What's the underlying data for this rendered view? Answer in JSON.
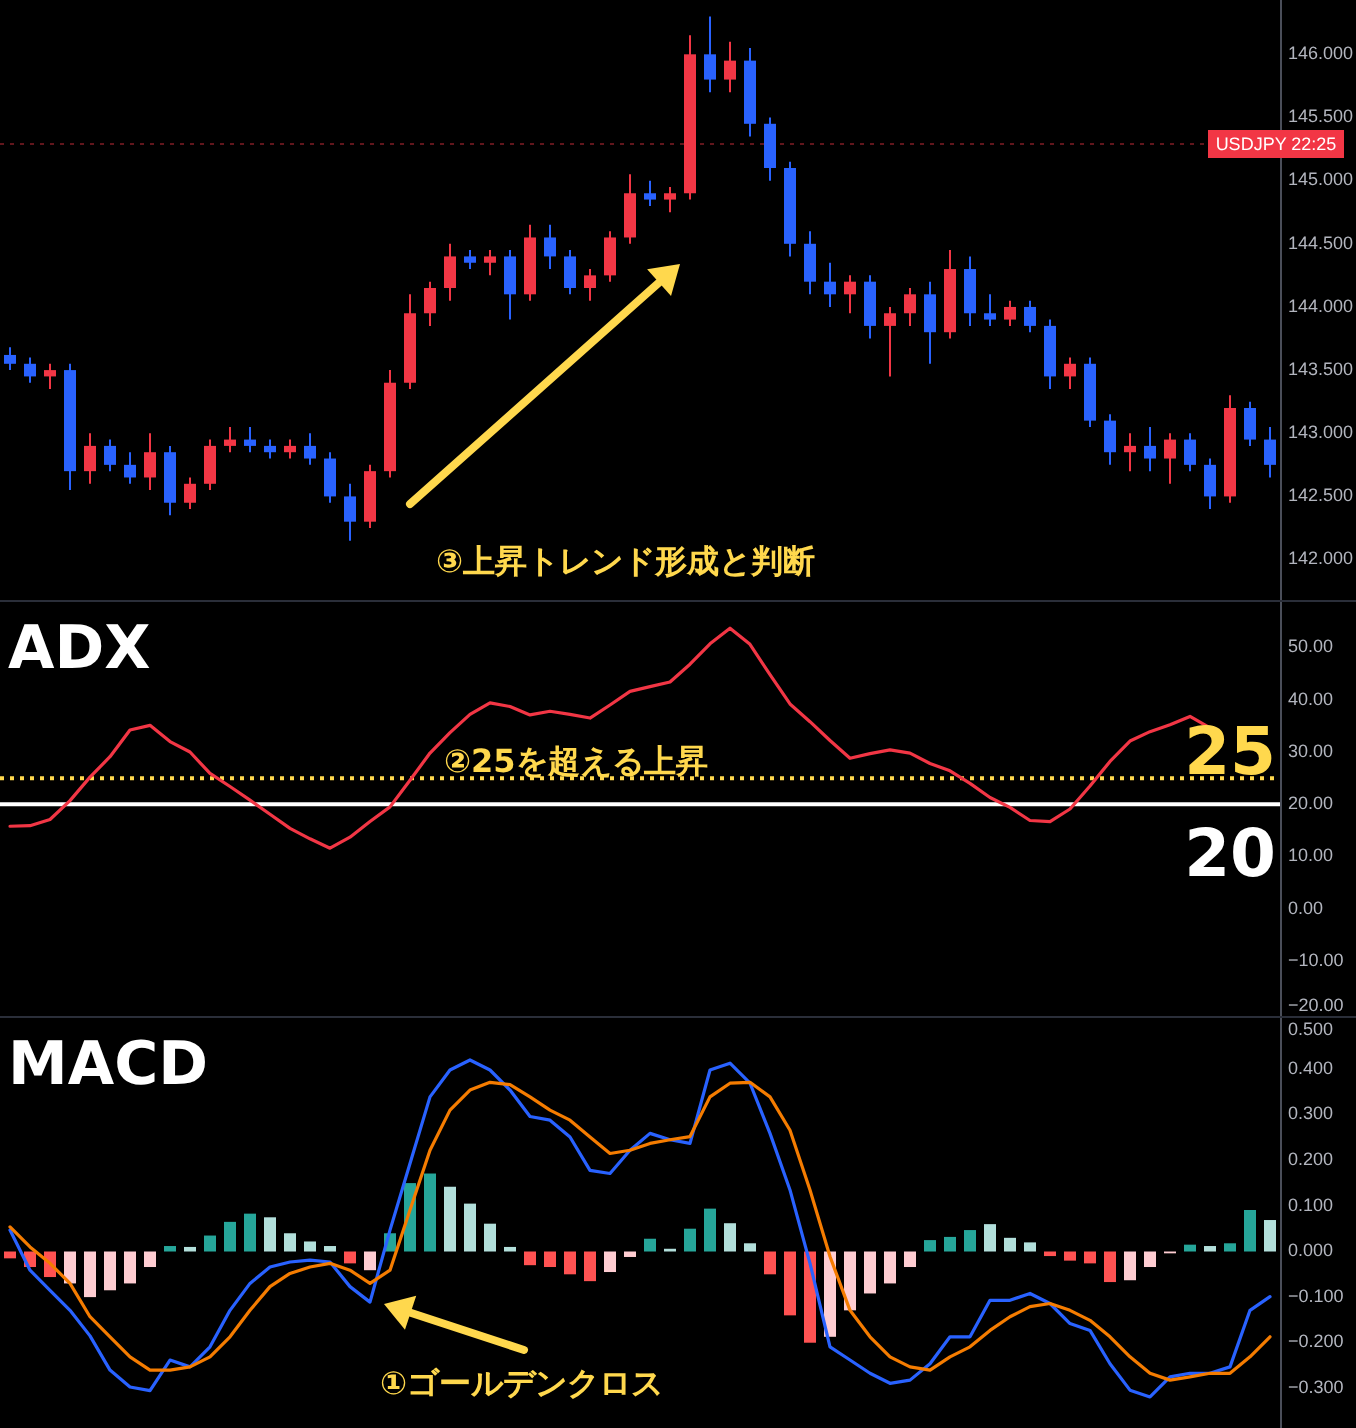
{
  "chart_data": [
    {
      "type": "candlestick",
      "categories": [
        null,
        null,
        null,
        null,
        null,
        null,
        null,
        null,
        null,
        null,
        null,
        null,
        null,
        null,
        null,
        null,
        null,
        null,
        null,
        null,
        null,
        null,
        null,
        null,
        null,
        null,
        null,
        null,
        null,
        null,
        null,
        null,
        null,
        null,
        null,
        null,
        null,
        null,
        null,
        null,
        null,
        null,
        null,
        null,
        null,
        null,
        null,
        null,
        null,
        null,
        null,
        null,
        null,
        null,
        null,
        null,
        null,
        null,
        null,
        null,
        null,
        null,
        null,
        null
      ],
      "ohlc": [
        [
          143.62,
          143.68,
          143.5,
          143.55
        ],
        [
          143.55,
          143.6,
          143.4,
          143.45
        ],
        [
          143.45,
          143.55,
          143.35,
          143.5
        ],
        [
          143.5,
          143.55,
          142.55,
          142.7
        ],
        [
          142.7,
          143.0,
          142.6,
          142.9
        ],
        [
          142.9,
          142.95,
          142.7,
          142.75
        ],
        [
          142.75,
          142.85,
          142.6,
          142.65
        ],
        [
          142.65,
          143.0,
          142.55,
          142.85
        ],
        [
          142.85,
          142.9,
          142.35,
          142.45
        ],
        [
          142.45,
          142.65,
          142.4,
          142.6
        ],
        [
          142.6,
          142.95,
          142.55,
          142.9
        ],
        [
          142.9,
          143.05,
          142.85,
          142.95
        ],
        [
          142.95,
          143.05,
          142.85,
          142.9
        ],
        [
          142.9,
          142.95,
          142.8,
          142.85
        ],
        [
          142.85,
          142.95,
          142.8,
          142.9
        ],
        [
          142.9,
          143.0,
          142.75,
          142.8
        ],
        [
          142.8,
          142.85,
          142.45,
          142.5
        ],
        [
          142.5,
          142.6,
          142.15,
          142.3
        ],
        [
          142.3,
          142.75,
          142.25,
          142.7
        ],
        [
          142.7,
          143.5,
          142.65,
          143.4
        ],
        [
          143.4,
          144.1,
          143.35,
          143.95
        ],
        [
          143.95,
          144.2,
          143.85,
          144.15
        ],
        [
          144.15,
          144.5,
          144.05,
          144.4
        ],
        [
          144.4,
          144.45,
          144.3,
          144.35
        ],
        [
          144.35,
          144.45,
          144.25,
          144.4
        ],
        [
          144.4,
          144.45,
          143.9,
          144.1
        ],
        [
          144.1,
          144.65,
          144.05,
          144.55
        ],
        [
          144.55,
          144.65,
          144.3,
          144.4
        ],
        [
          144.4,
          144.45,
          144.1,
          144.15
        ],
        [
          144.15,
          144.3,
          144.05,
          144.25
        ],
        [
          144.25,
          144.6,
          144.2,
          144.55
        ],
        [
          144.55,
          145.05,
          144.5,
          144.9
        ],
        [
          144.9,
          145.0,
          144.8,
          144.85
        ],
        [
          144.85,
          144.95,
          144.75,
          144.9
        ],
        [
          144.9,
          146.15,
          144.85,
          146.0
        ],
        [
          146.0,
          146.3,
          145.7,
          145.8
        ],
        [
          145.8,
          146.1,
          145.7,
          145.95
        ],
        [
          145.95,
          146.05,
          145.35,
          145.45
        ],
        [
          145.45,
          145.5,
          145.0,
          145.1
        ],
        [
          145.1,
          145.15,
          144.4,
          144.5
        ],
        [
          144.5,
          144.6,
          144.1,
          144.2
        ],
        [
          144.2,
          144.35,
          144.0,
          144.1
        ],
        [
          144.1,
          144.25,
          143.95,
          144.2
        ],
        [
          144.2,
          144.25,
          143.75,
          143.85
        ],
        [
          143.85,
          144.0,
          143.45,
          143.95
        ],
        [
          143.95,
          144.15,
          143.85,
          144.1
        ],
        [
          144.1,
          144.2,
          143.55,
          143.8
        ],
        [
          143.8,
          144.45,
          143.75,
          144.3
        ],
        [
          144.3,
          144.4,
          143.85,
          143.95
        ],
        [
          143.95,
          144.1,
          143.85,
          143.9
        ],
        [
          143.9,
          144.05,
          143.85,
          144.0
        ],
        [
          144.0,
          144.05,
          143.8,
          143.85
        ],
        [
          143.85,
          143.9,
          143.35,
          143.45
        ],
        [
          143.45,
          143.6,
          143.35,
          143.55
        ],
        [
          143.55,
          143.6,
          143.05,
          143.1
        ],
        [
          143.1,
          143.15,
          142.75,
          142.85
        ],
        [
          142.85,
          143.0,
          142.7,
          142.9
        ],
        [
          142.9,
          143.05,
          142.7,
          142.8
        ],
        [
          142.8,
          143.0,
          142.6,
          142.95
        ],
        [
          142.95,
          143.0,
          142.7,
          142.75
        ],
        [
          142.75,
          142.8,
          142.4,
          142.5
        ],
        [
          142.5,
          143.3,
          142.45,
          143.2
        ],
        [
          143.2,
          143.25,
          142.9,
          142.95
        ],
        [
          142.95,
          143.05,
          142.65,
          142.75
        ]
      ],
      "colors": [
        "#2962ff",
        "#2962ff",
        "#f23645",
        "#2962ff",
        "#f23645",
        "#2962ff",
        "#2962ff",
        "#f23645",
        "#2962ff",
        "#f23645",
        "#f23645",
        "#f23645",
        "#2962ff",
        "#2962ff",
        "#f23645",
        "#2962ff",
        "#2962ff",
        "#2962ff",
        "#f23645",
        "#f23645",
        "#f23645",
        "#f23645",
        "#f23645",
        "#2962ff",
        "#f23645",
        "#2962ff",
        "#f23645",
        "#2962ff",
        "#2962ff",
        "#f23645",
        "#f23645",
        "#f23645",
        "#2962ff",
        "#f23645",
        "#f23645",
        "#2962ff",
        "#f23645",
        "#2962ff",
        "#2962ff",
        "#2962ff",
        "#2962ff",
        "#2962ff",
        "#f23645",
        "#2962ff",
        "#f23645",
        "#f23645",
        "#2962ff",
        "#f23645",
        "#2962ff",
        "#2962ff",
        "#f23645",
        "#2962ff",
        "#2962ff",
        "#f23645",
        "#2962ff",
        "#2962ff",
        "#f23645",
        "#2962ff",
        "#f23645",
        "#2962ff",
        "#2962ff",
        "#f23645",
        "#2962ff",
        "#2962ff"
      ],
      "ylim": [
        141.68,
        146.43
      ],
      "yticks": [
        {
          "value": 142,
          "label": "142.000"
        },
        {
          "value": 142.5,
          "label": "142.500"
        },
        {
          "value": 143,
          "label": "143.000"
        },
        {
          "value": 143.5,
          "label": "143.500"
        },
        {
          "value": 144,
          "label": "144.000"
        },
        {
          "value": 144.5,
          "label": "144.500"
        },
        {
          "value": 145,
          "label": "145.000"
        },
        {
          "value": 145.5,
          "label": "145.500"
        },
        {
          "value": 146,
          "label": "146.000"
        }
      ],
      "tick_labels": "y",
      "ref_lines": [
        {
          "axis": "y",
          "value": 145.29,
          "color": "#f23645",
          "line_style": "dotted"
        }
      ],
      "annotations": [
        "③上昇トレンド形成と判断",
        "USDJPY 22:25"
      ]
    },
    {
      "type": "line",
      "title": "ADX",
      "categories": [
        null,
        null,
        null,
        null,
        null,
        null,
        null,
        null,
        null,
        null,
        null,
        null,
        null,
        null,
        null,
        null,
        null,
        null,
        null,
        null,
        null,
        null,
        null,
        null,
        null,
        null,
        null,
        null,
        null,
        null,
        null,
        null,
        null,
        null,
        null,
        null,
        null,
        null,
        null,
        null,
        null,
        null,
        null,
        null,
        null,
        null,
        null,
        null,
        null,
        null,
        null,
        null,
        null,
        null,
        null,
        null,
        null,
        null,
        null,
        null,
        null,
        null,
        null,
        null
      ],
      "series": [
        {
          "color": "#f23645",
          "values": [
            15.8,
            15.9,
            17.1,
            20.7,
            25.2,
            29.1,
            34.2,
            35.1,
            32.0,
            30.0,
            25.9,
            23.4,
            20.8,
            18.1,
            15.4,
            13.4,
            11.6,
            13.7,
            16.7,
            19.5,
            24.6,
            29.8,
            33.7,
            37.2,
            39.4,
            38.7,
            37.1,
            37.8,
            37.2,
            36.5,
            39.0,
            41.6,
            42.5,
            43.4,
            46.8,
            50.7,
            53.7,
            50.6,
            44.8,
            39.2,
            35.8,
            32.2,
            28.8,
            29.7,
            30.4,
            29.8,
            27.8,
            26.4,
            24.0,
            21.3,
            19.4,
            16.9,
            16.7,
            19.1,
            23.5,
            28.2,
            32.1,
            33.9,
            35.2,
            36.8,
            34.6,
            null,
            null,
            null
          ]
        }
      ],
      "ylim": [
        -20.5,
        58.7
      ],
      "yticks": [
        {
          "value": -20,
          "label": "−20.00"
        },
        {
          "value": -10,
          "label": "−10.00"
        },
        {
          "value": 0,
          "label": "0.00"
        },
        {
          "value": 10,
          "label": "10.00"
        },
        {
          "value": 20,
          "label": "20.00"
        },
        {
          "value": 30,
          "label": "30.00"
        },
        {
          "value": 40,
          "label": "40.00"
        },
        {
          "value": 50,
          "label": "50.00"
        }
      ],
      "tick_labels": "y",
      "ref_lines": [
        {
          "axis": "y",
          "value": 25,
          "label": "25",
          "color": "#ffd84d",
          "line_style": "dotted"
        },
        {
          "axis": "y",
          "value": 20,
          "label": "20",
          "color": "#ffffff",
          "line_style": "solid"
        }
      ],
      "annotations": [
        "②25を超える上昇"
      ]
    },
    {
      "type": "line",
      "title": "MACD",
      "categories": [
        null,
        null,
        null,
        null,
        null,
        null,
        null,
        null,
        null,
        null,
        null,
        null,
        null,
        null,
        null,
        null,
        null,
        null,
        null,
        null,
        null,
        null,
        null,
        null,
        null,
        null,
        null,
        null,
        null,
        null,
        null,
        null,
        null,
        null,
        null,
        null,
        null,
        null,
        null,
        null,
        null,
        null,
        null,
        null,
        null,
        null,
        null,
        null,
        null,
        null,
        null,
        null,
        null,
        null,
        null,
        null,
        null,
        null,
        null,
        null,
        null,
        null,
        null,
        null
      ],
      "series": [
        {
          "type": "bar",
          "values": [
            -0.015,
            -0.034,
            -0.056,
            -0.07,
            -0.1,
            -0.085,
            -0.07,
            -0.034,
            0.012,
            0.01,
            0.035,
            0.065,
            0.083,
            0.075,
            0.04,
            0.022,
            0.012,
            -0.026,
            -0.041,
            0.04,
            0.15,
            0.171,
            0.142,
            0.105,
            0.061,
            0.01,
            -0.03,
            -0.034,
            -0.05,
            -0.065,
            -0.045,
            -0.012,
            0.028,
            0.006,
            0.05,
            0.094,
            0.062,
            0.018,
            -0.05,
            -0.14,
            -0.2,
            -0.187,
            -0.129,
            -0.092,
            -0.07,
            -0.034,
            0.025,
            0.032,
            0.047,
            0.06,
            0.03,
            0.02,
            -0.01,
            -0.02,
            -0.026,
            -0.067,
            -0.063,
            -0.034,
            -0.004,
            0.015,
            0.012,
            0.018,
            0.091,
            0.069
          ],
          "colors": [
            "#ff5252",
            "#ff5252",
            "#ff5252",
            "#ffcdd2",
            "#ffcdd2",
            "#ffcdd2",
            "#ffcdd2",
            "#ffcdd2",
            "#26a69a",
            "#b2dfdb",
            "#26a69a",
            "#26a69a",
            "#26a69a",
            "#b2dfdb",
            "#b2dfdb",
            "#b2dfdb",
            "#b2dfdb",
            "#ff5252",
            "#ffcdd2",
            "#26a69a",
            "#26a69a",
            "#26a69a",
            "#b2dfdb",
            "#b2dfdb",
            "#b2dfdb",
            "#b2dfdb",
            "#ff5252",
            "#ff5252",
            "#ff5252",
            "#ff5252",
            "#ffcdd2",
            "#ffcdd2",
            "#26a69a",
            "#b2dfdb",
            "#26a69a",
            "#26a69a",
            "#b2dfdb",
            "#b2dfdb",
            "#ff5252",
            "#ff5252",
            "#ff5252",
            "#ffcdd2",
            "#ffcdd2",
            "#ffcdd2",
            "#ffcdd2",
            "#ffcdd2",
            "#26a69a",
            "#26a69a",
            "#26a69a",
            "#b2dfdb",
            "#b2dfdb",
            "#b2dfdb",
            "#ff5252",
            "#ff5252",
            "#ff5252",
            "#ff5252",
            "#ffcdd2",
            "#ffcdd2",
            "#ffcdd2",
            "#26a69a",
            "#b2dfdb",
            "#26a69a",
            "#26a69a",
            "#b2dfdb"
          ]
        },
        {
          "color": "#2962ff",
          "values": [
            0.047,
            -0.041,
            -0.085,
            -0.129,
            -0.185,
            -0.26,
            -0.297,
            -0.305,
            -0.238,
            -0.253,
            -0.209,
            -0.129,
            -0.07,
            -0.034,
            -0.023,
            -0.019,
            -0.023,
            -0.077,
            -0.111,
            0.047,
            0.193,
            0.339,
            0.398,
            0.42,
            0.398,
            0.354,
            0.296,
            0.288,
            0.251,
            0.178,
            0.171,
            0.222,
            0.259,
            0.245,
            0.237,
            0.398,
            0.413,
            0.369,
            0.259,
            0.135,
            -0.026,
            -0.209,
            -0.238,
            -0.267,
            -0.289,
            -0.282,
            -0.246,
            -0.187,
            -0.187,
            -0.107,
            -0.107,
            -0.092,
            -0.114,
            -0.158,
            -0.173,
            -0.246,
            -0.304,
            -0.319,
            -0.275,
            -0.267,
            -0.267,
            -0.253,
            -0.129,
            -0.099
          ]
        },
        {
          "color": "#f57c00",
          "values": [
            0.054,
            0.01,
            -0.026,
            -0.07,
            -0.143,
            -0.187,
            -0.231,
            -0.26,
            -0.26,
            -0.253,
            -0.231,
            -0.187,
            -0.129,
            -0.077,
            -0.048,
            -0.034,
            -0.026,
            -0.041,
            -0.07,
            -0.041,
            0.091,
            0.222,
            0.31,
            0.354,
            0.371,
            0.366,
            0.339,
            0.31,
            0.288,
            0.251,
            0.215,
            0.222,
            0.237,
            0.245,
            0.252,
            0.339,
            0.369,
            0.371,
            0.339,
            0.266,
            0.135,
            -0.011,
            -0.129,
            -0.187,
            -0.231,
            -0.253,
            -0.26,
            -0.231,
            -0.209,
            -0.173,
            -0.143,
            -0.121,
            -0.114,
            -0.129,
            -0.151,
            -0.187,
            -0.231,
            -0.267,
            -0.282,
            -0.275,
            -0.267,
            -0.267,
            -0.231,
            -0.187
          ]
        }
      ],
      "ylim": [
        -0.387,
        0.512
      ],
      "yticks": [
        {
          "value": -0.3,
          "label": "−0.300"
        },
        {
          "value": -0.2,
          "label": "−0.200"
        },
        {
          "value": -0.1,
          "label": "−0.100"
        },
        {
          "value": 0,
          "label": "0.000"
        },
        {
          "value": 0.1,
          "label": "0.100"
        },
        {
          "value": 0.2,
          "label": "0.200"
        },
        {
          "value": 0.3,
          "label": "0.300"
        },
        {
          "value": 0.4,
          "label": "0.400"
        },
        {
          "value": 0.5,
          "label": "0.500"
        }
      ],
      "tick_labels": "y",
      "annotations": [
        "①ゴールデンクロス"
      ]
    }
  ]
}
